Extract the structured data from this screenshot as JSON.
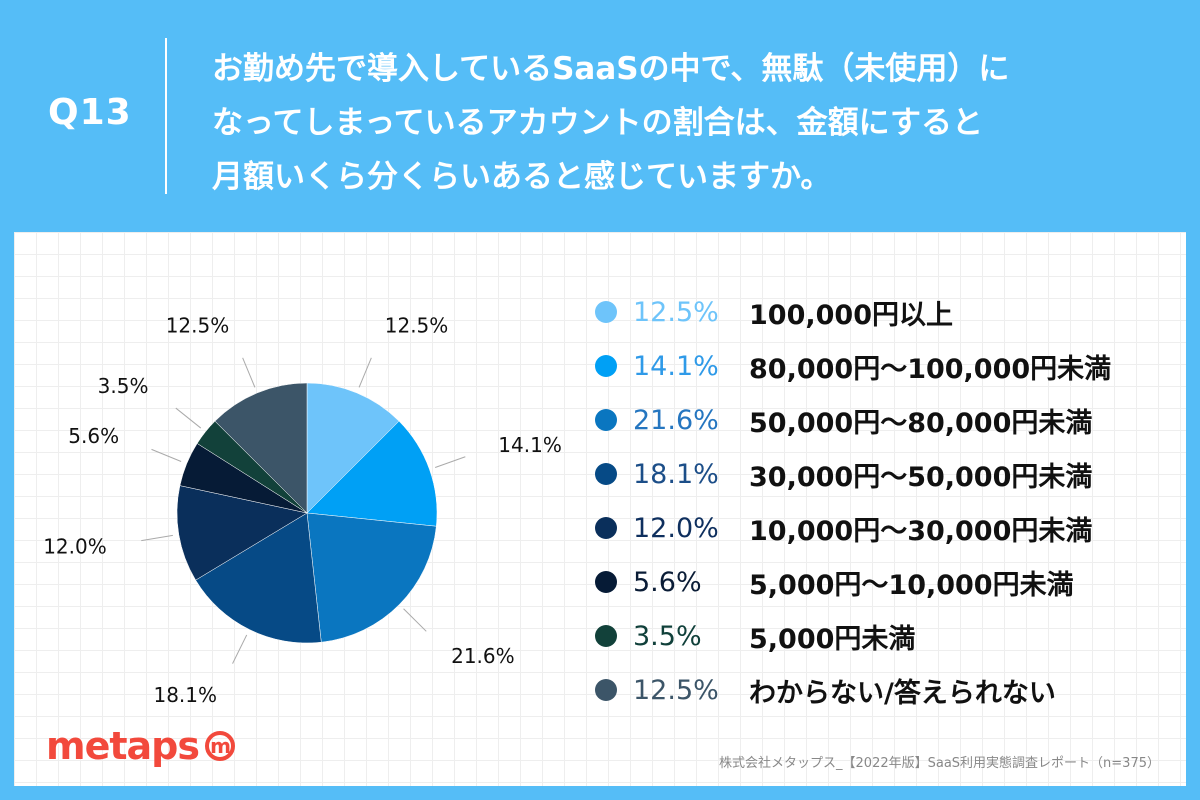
{
  "header": {
    "question_number": "Q13",
    "question_lines": [
      "お勤め先で導入しているSaaSの中で、無駄（未使用）に",
      "なってしまっているアカウントの割合は、金額にすると",
      "月額いくら分くらいあると感じていますか。"
    ]
  },
  "chart_data": {
    "type": "pie",
    "start_angle_deg": 0,
    "direction": "clockwise",
    "slices": [
      {
        "label": "100,000円以上",
        "value": 12.5,
        "display": "12.5%",
        "color": "#6EC4FA"
      },
      {
        "label": "80,000円〜100,000円未満",
        "value": 14.1,
        "display": "14.1%",
        "color": "#00A0F5"
      },
      {
        "label": "50,000円〜80,000円未満",
        "value": 21.6,
        "display": "21.6%",
        "color": "#0A76C0"
      },
      {
        "label": "30,000円〜50,000円未満",
        "value": 18.1,
        "display": "18.1%",
        "color": "#064A86"
      },
      {
        "label": "10,000円〜30,000円未満",
        "value": 12.0,
        "display": "12.0%",
        "color": "#0A2F5B"
      },
      {
        "label": "5,000円〜10,000円未満",
        "value": 5.6,
        "display": "5.6%",
        "color": "#061B36"
      },
      {
        "label": "5,000円未満",
        "value": 3.5,
        "display": "3.5%",
        "color": "#12413A"
      },
      {
        "label": "わからない/答えられない",
        "value": 12.5,
        "display": "12.5%",
        "color": "#3C5568"
      }
    ],
    "legend_pct_colors": [
      "#6EC4FA",
      "#2F9AE8",
      "#2576C0",
      "#1C4E88",
      "#0E2F5E",
      "#0A1C36",
      "#10403A",
      "#3C5568"
    ]
  },
  "brand": {
    "logo_text": "metaps",
    "logo_mark": "m"
  },
  "source": "株式会社メタップス_【2022年版】SaaS利用実態調査レポート（n=375）"
}
